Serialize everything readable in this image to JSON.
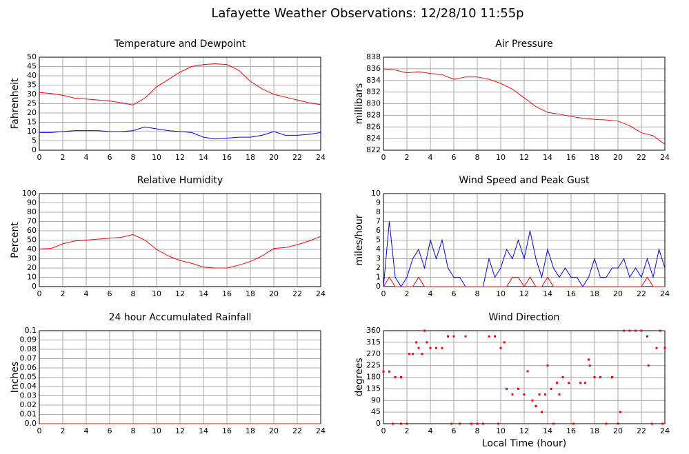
{
  "title": "Lafayette Weather Observations: 12/28/10 11:55p",
  "chart_data": [
    {
      "type": "line",
      "title": "Temperature and Dewpoint",
      "ylabel": "Fahrenheit",
      "x": [
        0,
        1,
        2,
        3,
        4,
        5,
        6,
        7,
        8,
        9,
        10,
        11,
        12,
        13,
        14,
        15,
        16,
        17,
        18,
        19,
        20,
        21,
        22,
        23,
        24
      ],
      "series": [
        {
          "color": "#ff0000",
          "values": [
            31,
            30.5,
            29.5,
            28,
            27.5,
            27,
            26.5,
            25.5,
            24.3,
            28,
            34,
            38,
            42,
            45,
            46,
            46.5,
            46,
            43,
            37,
            33,
            30,
            28.5,
            27,
            25.5,
            24.5
          ]
        },
        {
          "color": "#0000ff",
          "values": [
            9.5,
            9.5,
            10,
            10.5,
            10.5,
            10.5,
            10,
            10,
            10.5,
            12.5,
            11.5,
            10.5,
            10,
            9.5,
            7,
            6,
            6.5,
            7,
            7,
            8,
            10,
            8,
            8,
            8.5,
            9.5
          ]
        }
      ],
      "xlim": [
        0,
        24
      ],
      "ylim": [
        0,
        50
      ],
      "xticks": [
        0,
        2,
        4,
        6,
        8,
        10,
        12,
        14,
        16,
        18,
        20,
        22,
        24
      ],
      "yticks": [
        0,
        5,
        10,
        15,
        20,
        25,
        30,
        35,
        40,
        45,
        50
      ],
      "grid": true
    },
    {
      "type": "line",
      "title": "Air Pressure",
      "ylabel": "millibars",
      "x": [
        0,
        1,
        2,
        3,
        4,
        5,
        6,
        7,
        8,
        9,
        10,
        11,
        12,
        13,
        14,
        15,
        16,
        17,
        18,
        19,
        20,
        21,
        22,
        23,
        24
      ],
      "series": [
        {
          "color": "#ff0000",
          "values": [
            836,
            835.8,
            835.3,
            835.5,
            835.2,
            835,
            834.2,
            834.6,
            834.6,
            834.2,
            833.5,
            832.5,
            831,
            829.5,
            828.5,
            828.2,
            827.8,
            827.5,
            827.3,
            827.2,
            827,
            826.2,
            825,
            824.5,
            823
          ]
        }
      ],
      "xlim": [
        0,
        24
      ],
      "ylim": [
        822,
        838
      ],
      "xticks": [
        0,
        2,
        4,
        6,
        8,
        10,
        12,
        14,
        16,
        18,
        20,
        22,
        24
      ],
      "yticks": [
        822,
        824,
        826,
        828,
        830,
        832,
        834,
        836,
        838
      ],
      "grid": true
    },
    {
      "type": "line",
      "title": "Relative Humidity",
      "ylabel": "Percent",
      "x": [
        0,
        1,
        2,
        3,
        4,
        5,
        6,
        7,
        8,
        9,
        10,
        11,
        12,
        13,
        14,
        15,
        16,
        17,
        18,
        19,
        20,
        21,
        22,
        23,
        24
      ],
      "series": [
        {
          "color": "#ff0000",
          "values": [
            40.5,
            41,
            46,
            49,
            50,
            51,
            52,
            53,
            56,
            50,
            40,
            33,
            28,
            25,
            21,
            20,
            20,
            23,
            27,
            33,
            41,
            42,
            45,
            49,
            54
          ]
        }
      ],
      "xlim": [
        0,
        24
      ],
      "ylim": [
        0,
        100
      ],
      "xticks": [
        0,
        2,
        4,
        6,
        8,
        10,
        12,
        14,
        16,
        18,
        20,
        22,
        24
      ],
      "yticks": [
        0,
        10,
        20,
        30,
        40,
        50,
        60,
        70,
        80,
        90,
        100
      ],
      "grid": true
    },
    {
      "type": "line",
      "title": "Wind Speed and Peak Gust",
      "ylabel": "miles/hour",
      "x": [
        0,
        0.5,
        1,
        1.5,
        2,
        2.5,
        3,
        3.5,
        4,
        4.5,
        5,
        5.5,
        6,
        6.5,
        7,
        7.5,
        8,
        8.5,
        9,
        9.5,
        10,
        10.5,
        11,
        11.5,
        12,
        12.5,
        13,
        13.5,
        14,
        14.5,
        15,
        15.5,
        16,
        16.5,
        17,
        17.5,
        18,
        18.5,
        19,
        19.5,
        20,
        20.5,
        21,
        21.5,
        22,
        22.5,
        23,
        23.5,
        24
      ],
      "series": [
        {
          "color": "#0000ff",
          "values": [
            0,
            7,
            1,
            0,
            1,
            3,
            4,
            2,
            5,
            3,
            5,
            2,
            1,
            1,
            0,
            0,
            0,
            0,
            3,
            1,
            2,
            4,
            3,
            5,
            3,
            6,
            3,
            1,
            4,
            2,
            1,
            2,
            1,
            1,
            0,
            1,
            3,
            1,
            1,
            2,
            2,
            3,
            1,
            2,
            1,
            3,
            1,
            4,
            2
          ]
        },
        {
          "color": "#ff0000",
          "values": [
            0,
            1,
            0,
            0,
            0,
            0,
            1,
            0,
            0,
            0,
            0,
            0,
            0,
            0,
            0,
            0,
            0,
            0,
            0,
            0,
            0,
            0,
            1,
            1,
            0,
            1,
            0,
            0,
            1,
            0,
            0,
            0,
            0,
            0,
            0,
            0,
            0,
            0,
            0,
            0,
            0,
            0,
            0,
            0,
            0,
            1,
            0,
            0,
            0
          ]
        }
      ],
      "xlim": [
        0,
        24
      ],
      "ylim": [
        0,
        10
      ],
      "xticks": [
        0,
        2,
        4,
        6,
        8,
        10,
        12,
        14,
        16,
        18,
        20,
        22,
        24
      ],
      "yticks": [
        0,
        1,
        2,
        3,
        4,
        5,
        6,
        7,
        8,
        9,
        10
      ],
      "grid": true
    },
    {
      "type": "line",
      "title": "24 hour Accumulated Rainfall",
      "ylabel": "Inches",
      "x": [
        0,
        24
      ],
      "series": [
        {
          "color": "#ff0000",
          "values": [
            0,
            0
          ]
        }
      ],
      "xlim": [
        0,
        24
      ],
      "ylim": [
        0,
        0.1
      ],
      "xticks": [
        0,
        2,
        4,
        6,
        8,
        10,
        12,
        14,
        16,
        18,
        20,
        22,
        24
      ],
      "yticks": [
        {
          "value": 0,
          "label": "0.0"
        },
        0.01,
        0.02,
        0.03,
        0.04,
        0.05,
        0.06,
        0.07,
        0.08,
        0.09,
        0.1
      ],
      "grid": true
    },
    {
      "type": "scatter",
      "title": "Wind Direction",
      "ylabel": "degrees",
      "xlabel": "Local Time (hour)",
      "x": [
        0,
        0.5,
        1,
        1.5,
        0.8,
        1.5,
        2,
        2.2,
        2.5,
        2.8,
        3,
        3.3,
        3.5,
        3.7,
        4,
        4.5,
        5,
        5.5,
        6,
        5.8,
        6.5,
        7,
        7.5,
        8,
        8.5,
        9,
        9.5,
        9.8,
        10,
        10.3,
        10.5,
        11,
        11.5,
        12,
        12.3,
        12.7,
        13,
        13.3,
        13.5,
        13.8,
        14,
        14.3,
        14.5,
        14.8,
        15,
        15.3,
        15.8,
        16.2,
        16.8,
        17.2,
        17.5,
        17.6,
        18,
        18.5,
        19,
        19.5,
        20,
        20.2,
        20.5,
        21,
        21.5,
        22,
        22.5,
        22.6,
        22.9,
        23.3,
        23.6,
        24,
        23.8
      ],
      "series": [
        {
          "color": "#ff0000",
          "values": [
            202,
            202,
            180,
            180,
            0,
            0,
            0,
            270,
            270,
            315,
            293,
            270,
            360,
            315,
            293,
            293,
            293,
            338,
            338,
            0,
            0,
            338,
            0,
            0,
            0,
            338,
            338,
            0,
            293,
            315,
            135,
            113,
            135,
            113,
            203,
            90,
            68,
            113,
            45,
            113,
            225,
            135,
            0,
            158,
            113,
            180,
            158,
            0,
            158,
            158,
            248,
            225,
            180,
            180,
            0,
            180,
            0,
            45,
            360,
            360,
            360,
            360,
            338,
            225,
            0,
            293,
            360,
            293,
            0
          ]
        }
      ],
      "xlim": [
        0,
        24
      ],
      "ylim": [
        0,
        360
      ],
      "xticks": [
        0,
        2,
        4,
        6,
        8,
        10,
        12,
        14,
        16,
        18,
        20,
        22,
        24
      ],
      "yticks": [
        0,
        45,
        90,
        135,
        180,
        225,
        270,
        315,
        360
      ],
      "grid": true
    }
  ]
}
